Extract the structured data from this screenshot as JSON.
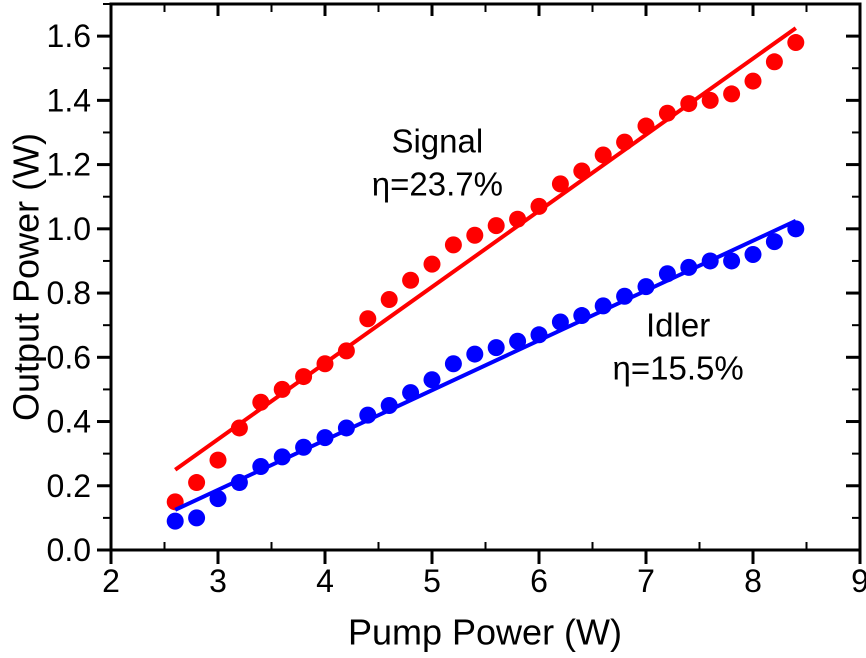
{
  "chart_data": {
    "type": "scatter",
    "title": "",
    "xlabel": "Pump Power (W)",
    "ylabel": "Output Power (W)",
    "xlim": [
      2,
      9
    ],
    "ylim": [
      0,
      1.7
    ],
    "grid": false,
    "legend_position": "none",
    "background_color": "#ffffff",
    "frame_color": "#000000",
    "x_ticks": {
      "values": [
        2,
        3,
        4,
        5,
        6,
        7,
        8,
        9
      ],
      "labels": [
        "2",
        "3",
        "4",
        "5",
        "6",
        "7",
        "8",
        "9"
      ],
      "minor_step": 0.5
    },
    "y_ticks": {
      "values": [
        0.0,
        0.2,
        0.4,
        0.6,
        0.8,
        1.0,
        1.2,
        1.4,
        1.6
      ],
      "labels": [
        "0.0",
        "0.2",
        "0.4",
        "0.6",
        "0.8",
        "1.0",
        "1.2",
        "1.4",
        "1.6"
      ],
      "minor_step": 0.1
    },
    "x": [
      2.6,
      2.8,
      3.0,
      3.2,
      3.4,
      3.6,
      3.8,
      4.0,
      4.2,
      4.4,
      4.6,
      4.8,
      5.0,
      5.2,
      5.4,
      5.6,
      5.8,
      6.0,
      6.2,
      6.4,
      6.6,
      6.8,
      7.0,
      7.2,
      7.4,
      7.6,
      7.8,
      8.0,
      8.2,
      8.4
    ],
    "series": [
      {
        "name": "Signal",
        "color": "#ff0000",
        "marker": "circle",
        "efficiency": "23.7%",
        "values": [
          0.15,
          0.21,
          0.28,
          0.38,
          0.46,
          0.5,
          0.54,
          0.58,
          0.62,
          0.72,
          0.78,
          0.84,
          0.89,
          0.95,
          0.98,
          1.01,
          1.03,
          1.07,
          1.14,
          1.18,
          1.23,
          1.27,
          1.32,
          1.36,
          1.39,
          1.4,
          1.42,
          1.46,
          1.52,
          1.58
        ],
        "fit_line": {
          "x": [
            2.6,
            8.4
          ],
          "y": [
            0.25,
            1.625
          ]
        },
        "annotation": {
          "lines": [
            "Signal",
            "η=23.7%"
          ],
          "anchor_x": 5.05,
          "anchor_y": 1.273
        }
      },
      {
        "name": "Idler",
        "color": "#0000ff",
        "marker": "circle",
        "efficiency": "15.5%",
        "values": [
          0.09,
          0.1,
          0.16,
          0.21,
          0.26,
          0.29,
          0.32,
          0.35,
          0.38,
          0.42,
          0.45,
          0.49,
          0.53,
          0.58,
          0.61,
          0.63,
          0.65,
          0.67,
          0.71,
          0.73,
          0.76,
          0.79,
          0.82,
          0.86,
          0.88,
          0.9,
          0.9,
          0.92,
          0.96,
          1.0
        ],
        "fit_line": {
          "x": [
            2.6,
            8.4
          ],
          "y": [
            0.125,
            1.025
          ]
        },
        "annotation": {
          "lines": [
            "Idler",
            "η=15.5%"
          ],
          "anchor_x": 7.3,
          "anchor_y": 0.7
        }
      }
    ]
  }
}
